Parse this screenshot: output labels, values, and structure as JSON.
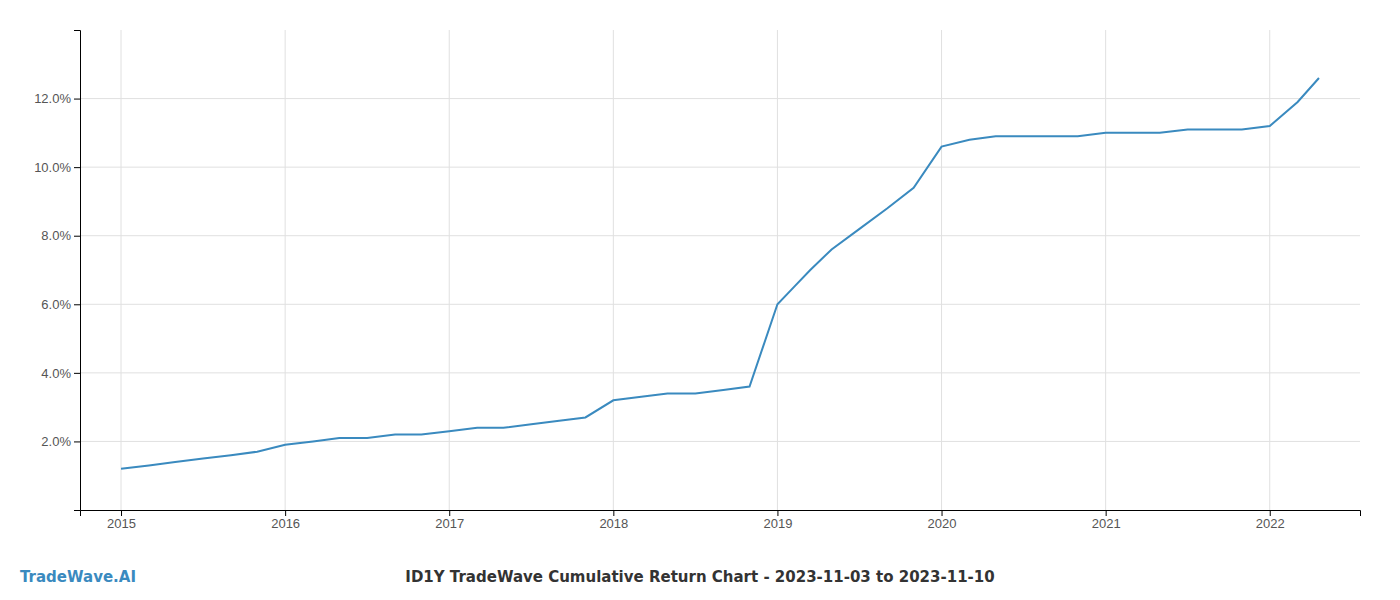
{
  "chart_data": {
    "type": "line",
    "title": "ID1Y TradeWave Cumulative Return Chart - 2023-11-03 to 2023-11-10",
    "annotations": [
      "TradeWave.AI"
    ],
    "x": [
      2015.0,
      2015.17,
      2015.33,
      2015.5,
      2015.67,
      2015.83,
      2016.0,
      2016.17,
      2016.33,
      2016.5,
      2016.67,
      2016.83,
      2017.0,
      2017.17,
      2017.33,
      2017.5,
      2017.67,
      2017.83,
      2018.0,
      2018.17,
      2018.33,
      2018.5,
      2018.67,
      2018.83,
      2019.0,
      2019.1,
      2019.2,
      2019.33,
      2019.5,
      2019.67,
      2019.83,
      2020.0,
      2020.17,
      2020.33,
      2020.5,
      2020.67,
      2020.83,
      2021.0,
      2021.17,
      2021.33,
      2021.5,
      2021.67,
      2021.83,
      2022.0,
      2022.17,
      2022.3
    ],
    "values": [
      0.012,
      0.013,
      0.014,
      0.015,
      0.016,
      0.017,
      0.019,
      0.02,
      0.021,
      0.021,
      0.022,
      0.022,
      0.023,
      0.024,
      0.024,
      0.025,
      0.026,
      0.027,
      0.032,
      0.033,
      0.034,
      0.034,
      0.035,
      0.036,
      0.06,
      0.065,
      0.07,
      0.076,
      0.082,
      0.088,
      0.094,
      0.106,
      0.108,
      0.109,
      0.109,
      0.109,
      0.109,
      0.11,
      0.11,
      0.11,
      0.111,
      0.111,
      0.111,
      0.112,
      0.119,
      0.126
    ],
    "color": "#3a8abf",
    "xlim": [
      2014.75,
      2022.55
    ],
    "ylim": [
      0.0,
      0.14
    ],
    "xticks": [
      2015,
      2016,
      2017,
      2018,
      2019,
      2020,
      2021,
      2022
    ],
    "yticks": [
      {
        "value": 0.02,
        "label": "2.0%"
      },
      {
        "value": 0.04,
        "label": "4.0%"
      },
      {
        "value": 0.06,
        "label": "6.0%"
      },
      {
        "value": 0.08,
        "label": "8.0%"
      },
      {
        "value": 0.1,
        "label": "10.0%"
      },
      {
        "value": 0.12,
        "label": "12.0%"
      }
    ],
    "grid": true
  }
}
